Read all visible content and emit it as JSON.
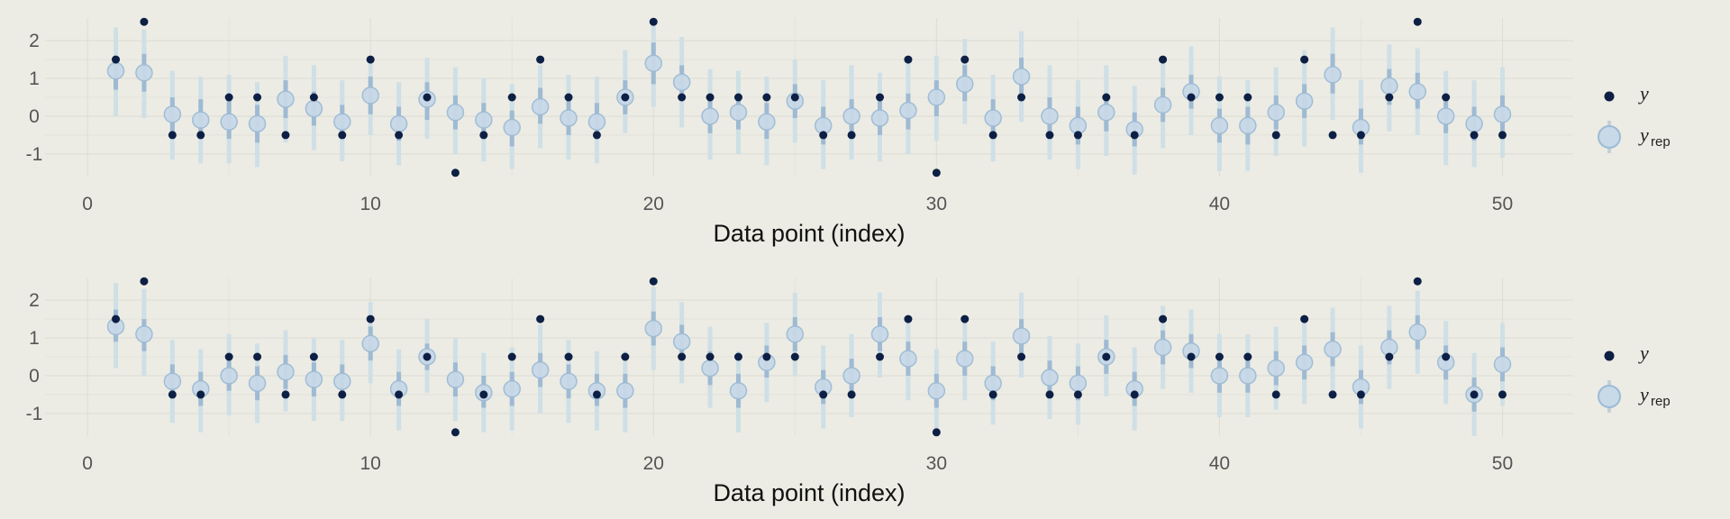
{
  "colors": {
    "background": "#ecece4",
    "y_point": "#0d1f44",
    "yrep_point_fill": "#c8d9e8",
    "yrep_point_stroke": "#9dbbd6",
    "interval_outer": "#cfdfe6",
    "interval_inner": "#9fbad3",
    "grid": "#dcdcd4"
  },
  "legend": {
    "y_label": "y",
    "yrep_label": "y",
    "yrep_subscript": "rep"
  },
  "chart_data": [
    {
      "type": "scatter",
      "xlabel": "Data point (index)",
      "ylabel": "",
      "xlim": [
        -1.5,
        52.5
      ],
      "ylim": [
        -1.6,
        2.6
      ],
      "xticks": [
        0,
        10,
        20,
        30,
        40,
        50
      ],
      "yticks": [
        2,
        1,
        0,
        -1
      ],
      "grid": true,
      "legend_position": "right",
      "x": [
        1,
        2,
        3,
        4,
        5,
        6,
        7,
        8,
        9,
        10,
        11,
        12,
        13,
        14,
        15,
        16,
        17,
        18,
        19,
        20,
        21,
        22,
        23,
        24,
        25,
        26,
        27,
        28,
        29,
        30,
        31,
        32,
        33,
        34,
        35,
        36,
        37,
        38,
        39,
        40,
        41,
        42,
        43,
        44,
        45,
        46,
        47,
        48,
        49,
        50
      ],
      "series": [
        {
          "name": "y",
          "values": [
            1.5,
            2.5,
            -0.5,
            -0.5,
            0.5,
            0.5,
            -0.5,
            0.5,
            -0.5,
            1.5,
            -0.5,
            0.5,
            -1.5,
            -0.5,
            0.5,
            1.5,
            0.5,
            -0.5,
            0.5,
            2.5,
            0.5,
            0.5,
            0.5,
            0.5,
            0.5,
            -0.5,
            -0.5,
            0.5,
            1.5,
            -1.5,
            1.5,
            -0.5,
            0.5,
            -0.5,
            -0.5,
            0.5,
            -0.5,
            1.5,
            0.5,
            0.5,
            0.5,
            -0.5,
            1.5,
            -0.5,
            -0.5,
            0.5,
            2.5,
            0.5,
            -0.5,
            -0.5
          ]
        },
        {
          "name": "y_rep",
          "values": [
            1.2,
            1.15,
            0.05,
            -0.1,
            -0.15,
            -0.2,
            0.45,
            0.2,
            -0.15,
            0.55,
            -0.2,
            0.45,
            0.1,
            -0.1,
            -0.3,
            0.25,
            -0.05,
            -0.15,
            0.5,
            1.4,
            0.9,
            0.0,
            0.1,
            -0.15,
            0.4,
            -0.25,
            0.0,
            -0.05,
            0.15,
            0.5,
            0.85,
            -0.05,
            1.05,
            0.0,
            -0.25,
            0.1,
            -0.35,
            0.3,
            0.65,
            -0.25,
            -0.25,
            0.1,
            0.4,
            1.1,
            -0.3,
            0.8,
            0.65,
            0.0,
            -0.2,
            0.05
          ]
        }
      ],
      "interval_inner": [
        [
          0.7,
          1.6
        ],
        [
          0.65,
          1.65
        ],
        [
          -0.4,
          0.5
        ],
        [
          -0.55,
          0.45
        ],
        [
          -0.6,
          0.4
        ],
        [
          -0.7,
          0.3
        ],
        [
          -0.05,
          0.95
        ],
        [
          -0.25,
          0.65
        ],
        [
          -0.6,
          0.3
        ],
        [
          0.05,
          1.05
        ],
        [
          -0.65,
          0.25
        ],
        [
          -0.1,
          0.9
        ],
        [
          -0.35,
          0.55
        ],
        [
          -0.55,
          0.35
        ],
        [
          -0.8,
          0.15
        ],
        [
          -0.2,
          0.75
        ],
        [
          -0.5,
          0.45
        ],
        [
          -0.6,
          0.35
        ],
        [
          0.05,
          0.95
        ],
        [
          0.85,
          1.95
        ],
        [
          0.45,
          1.35
        ],
        [
          -0.45,
          0.5
        ],
        [
          -0.35,
          0.55
        ],
        [
          -0.6,
          0.35
        ],
        [
          -0.05,
          0.85
        ],
        [
          -0.75,
          0.25
        ],
        [
          -0.45,
          0.45
        ],
        [
          -0.5,
          0.4
        ],
        [
          -0.35,
          0.6
        ],
        [
          0.0,
          0.95
        ],
        [
          0.4,
          1.35
        ],
        [
          -0.55,
          0.45
        ],
        [
          0.5,
          1.55
        ],
        [
          -0.5,
          0.5
        ],
        [
          -0.75,
          0.25
        ],
        [
          -0.4,
          0.55
        ],
        [
          -0.8,
          0.1
        ],
        [
          -0.15,
          0.75
        ],
        [
          0.2,
          1.1
        ],
        [
          -0.7,
          0.2
        ],
        [
          -0.75,
          0.25
        ],
        [
          -0.35,
          0.55
        ],
        [
          -0.05,
          0.85
        ],
        [
          0.6,
          1.65
        ],
        [
          -0.75,
          0.2
        ],
        [
          0.3,
          1.25
        ],
        [
          0.2,
          1.15
        ],
        [
          -0.45,
          0.45
        ],
        [
          -0.65,
          0.25
        ],
        [
          -0.45,
          0.55
        ]
      ],
      "interval_outer": [
        [
          0.0,
          2.35
        ],
        [
          -0.05,
          2.3
        ],
        [
          -1.15,
          1.2
        ],
        [
          -1.25,
          1.05
        ],
        [
          -1.25,
          1.1
        ],
        [
          -1.35,
          0.9
        ],
        [
          -0.7,
          1.6
        ],
        [
          -0.9,
          1.35
        ],
        [
          -1.2,
          0.95
        ],
        [
          -0.5,
          1.6
        ],
        [
          -1.3,
          0.9
        ],
        [
          -0.6,
          1.55
        ],
        [
          -1.0,
          1.3
        ],
        [
          -1.2,
          1.0
        ],
        [
          -1.4,
          0.85
        ],
        [
          -0.85,
          1.35
        ],
        [
          -1.15,
          1.1
        ],
        [
          -1.25,
          1.05
        ],
        [
          -0.45,
          1.75
        ],
        [
          0.25,
          2.45
        ],
        [
          -0.3,
          2.1
        ],
        [
          -1.15,
          1.25
        ],
        [
          -1.0,
          1.2
        ],
        [
          -1.3,
          1.05
        ],
        [
          -0.7,
          1.5
        ],
        [
          -1.4,
          0.95
        ],
        [
          -1.15,
          1.35
        ],
        [
          -1.2,
          1.15
        ],
        [
          -1.0,
          1.55
        ],
        [
          -0.65,
          1.6
        ],
        [
          -0.2,
          2.05
        ],
        [
          -1.2,
          1.1
        ],
        [
          -0.15,
          2.25
        ],
        [
          -1.15,
          1.35
        ],
        [
          -1.4,
          0.95
        ],
        [
          -1.05,
          1.35
        ],
        [
          -1.55,
          0.8
        ],
        [
          -0.85,
          1.5
        ],
        [
          -0.5,
          1.85
        ],
        [
          -1.45,
          1.05
        ],
        [
          -1.45,
          0.95
        ],
        [
          -1.05,
          1.3
        ],
        [
          -0.8,
          1.75
        ],
        [
          -0.1,
          2.35
        ],
        [
          -1.5,
          0.95
        ],
        [
          -0.4,
          1.9
        ],
        [
          -0.5,
          1.8
        ],
        [
          -1.3,
          1.2
        ],
        [
          -1.35,
          0.95
        ],
        [
          -1.1,
          1.3
        ]
      ]
    },
    {
      "type": "scatter",
      "xlabel": "Data point (index)",
      "ylabel": "",
      "xlim": [
        -1.5,
        52.5
      ],
      "ylim": [
        -1.6,
        2.6
      ],
      "xticks": [
        0,
        10,
        20,
        30,
        40,
        50
      ],
      "yticks": [
        2,
        1,
        0,
        -1
      ],
      "grid": true,
      "legend_position": "right",
      "x": [
        1,
        2,
        3,
        4,
        5,
        6,
        7,
        8,
        9,
        10,
        11,
        12,
        13,
        14,
        15,
        16,
        17,
        18,
        19,
        20,
        21,
        22,
        23,
        24,
        25,
        26,
        27,
        28,
        29,
        30,
        31,
        32,
        33,
        34,
        35,
        36,
        37,
        38,
        39,
        40,
        41,
        42,
        43,
        44,
        45,
        46,
        47,
        48,
        49,
        50
      ],
      "series": [
        {
          "name": "y",
          "values": [
            1.5,
            2.5,
            -0.5,
            -0.5,
            0.5,
            0.5,
            -0.5,
            0.5,
            -0.5,
            1.5,
            -0.5,
            0.5,
            -1.5,
            -0.5,
            0.5,
            1.5,
            0.5,
            -0.5,
            0.5,
            2.5,
            0.5,
            0.5,
            0.5,
            0.5,
            0.5,
            -0.5,
            -0.5,
            0.5,
            1.5,
            -1.5,
            1.5,
            -0.5,
            0.5,
            -0.5,
            -0.5,
            0.5,
            -0.5,
            1.5,
            0.5,
            0.5,
            0.5,
            -0.5,
            1.5,
            -0.5,
            -0.5,
            0.5,
            2.5,
            0.5,
            -0.5,
            -0.5
          ]
        },
        {
          "name": "y_rep",
          "values": [
            1.3,
            1.1,
            -0.15,
            -0.35,
            0.0,
            -0.2,
            0.1,
            -0.1,
            -0.15,
            0.85,
            -0.35,
            0.5,
            -0.1,
            -0.45,
            -0.35,
            0.15,
            -0.15,
            -0.4,
            -0.4,
            1.25,
            0.9,
            0.2,
            -0.4,
            0.35,
            1.1,
            -0.3,
            0.0,
            1.1,
            0.45,
            -0.4,
            0.45,
            -0.2,
            1.05,
            -0.05,
            -0.2,
            0.5,
            -0.35,
            0.75,
            0.65,
            0.0,
            0.0,
            0.2,
            0.35,
            0.7,
            -0.3,
            0.75,
            1.15,
            0.35,
            -0.5,
            0.3
          ]
        }
      ],
      "interval_inner": [
        [
          0.9,
          1.75
        ],
        [
          0.65,
          1.5
        ],
        [
          -0.6,
          0.3
        ],
        [
          -0.8,
          0.1
        ],
        [
          -0.4,
          0.4
        ],
        [
          -0.65,
          0.25
        ],
        [
          -0.35,
          0.55
        ],
        [
          -0.55,
          0.35
        ],
        [
          -0.55,
          0.3
        ],
        [
          0.4,
          1.3
        ],
        [
          -0.8,
          0.1
        ],
        [
          0.15,
          0.85
        ],
        [
          -0.55,
          0.35
        ],
        [
          -0.85,
          0.0
        ],
        [
          -0.8,
          0.1
        ],
        [
          -0.3,
          0.6
        ],
        [
          -0.6,
          0.3
        ],
        [
          -0.8,
          0.05
        ],
        [
          -0.85,
          0.05
        ],
        [
          0.8,
          1.7
        ],
        [
          0.45,
          1.35
        ],
        [
          -0.25,
          0.65
        ],
        [
          -0.85,
          0.05
        ],
        [
          -0.05,
          0.8
        ],
        [
          0.65,
          1.55
        ],
        [
          -0.75,
          0.15
        ],
        [
          -0.45,
          0.45
        ],
        [
          0.65,
          1.55
        ],
        [
          0.0,
          0.9
        ],
        [
          -0.85,
          0.05
        ],
        [
          0.0,
          0.9
        ],
        [
          -0.65,
          0.25
        ],
        [
          0.6,
          1.5
        ],
        [
          -0.5,
          0.4
        ],
        [
          -0.65,
          0.25
        ],
        [
          0.05,
          0.95
        ],
        [
          -0.8,
          0.1
        ],
        [
          0.3,
          1.2
        ],
        [
          0.2,
          1.1
        ],
        [
          -0.45,
          0.45
        ],
        [
          -0.45,
          0.45
        ],
        [
          -0.25,
          0.65
        ],
        [
          -0.1,
          0.8
        ],
        [
          0.25,
          1.15
        ],
        [
          -0.75,
          0.15
        ],
        [
          0.3,
          1.2
        ],
        [
          0.7,
          1.6
        ],
        [
          -0.1,
          0.8
        ],
        [
          -0.95,
          -0.05
        ],
        [
          -0.15,
          0.75
        ]
      ],
      "interval_outer": [
        [
          0.2,
          2.45
        ],
        [
          0.0,
          2.3
        ],
        [
          -1.25,
          0.95
        ],
        [
          -1.5,
          0.7
        ],
        [
          -1.05,
          1.1
        ],
        [
          -1.25,
          0.85
        ],
        [
          -0.95,
          1.2
        ],
        [
          -1.2,
          1.0
        ],
        [
          -1.2,
          0.95
        ],
        [
          -0.2,
          1.95
        ],
        [
          -1.45,
          0.7
        ],
        [
          -0.45,
          1.5
        ],
        [
          -1.2,
          1.0
        ],
        [
          -1.5,
          0.6
        ],
        [
          -1.45,
          0.75
        ],
        [
          -1.0,
          1.35
        ],
        [
          -1.25,
          0.95
        ],
        [
          -1.45,
          0.65
        ],
        [
          -1.5,
          0.65
        ],
        [
          0.15,
          2.35
        ],
        [
          -0.2,
          1.95
        ],
        [
          -0.85,
          1.3
        ],
        [
          -1.5,
          0.65
        ],
        [
          -0.7,
          1.4
        ],
        [
          0.0,
          2.2
        ],
        [
          -1.4,
          0.8
        ],
        [
          -1.1,
          1.1
        ],
        [
          -0.05,
          2.2
        ],
        [
          -0.65,
          1.55
        ],
        [
          -1.5,
          0.7
        ],
        [
          -0.65,
          1.55
        ],
        [
          -1.3,
          0.9
        ],
        [
          -0.05,
          2.2
        ],
        [
          -1.15,
          1.05
        ],
        [
          -1.3,
          0.85
        ],
        [
          -0.55,
          1.6
        ],
        [
          -1.45,
          0.75
        ],
        [
          -0.35,
          1.85
        ],
        [
          -0.45,
          1.75
        ],
        [
          -1.1,
          1.1
        ],
        [
          -1.1,
          1.1
        ],
        [
          -0.9,
          1.3
        ],
        [
          -0.75,
          1.45
        ],
        [
          -0.4,
          1.8
        ],
        [
          -1.4,
          0.8
        ],
        [
          -0.35,
          1.85
        ],
        [
          0.05,
          2.25
        ],
        [
          -0.75,
          1.45
        ],
        [
          -1.6,
          0.6
        ],
        [
          -0.8,
          1.4
        ]
      ]
    }
  ]
}
